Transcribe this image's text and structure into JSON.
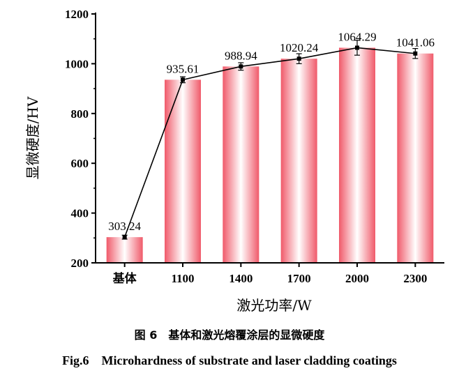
{
  "chart_data": {
    "type": "bar",
    "categories": [
      "基体",
      "1100",
      "1400",
      "1700",
      "2000",
      "2300"
    ],
    "values": [
      303.24,
      935.61,
      988.94,
      1020.24,
      1064.29,
      1041.06
    ],
    "value_labels": [
      "303.24",
      "935.61",
      "988.94",
      "1020.24",
      "1064.29",
      "1041.06"
    ],
    "error": [
      8,
      12,
      15,
      20,
      30,
      20
    ],
    "line_overlay": true,
    "xlabel": "激光功率/W",
    "ylabel": "显微硬度/HV",
    "ylim": [
      200,
      1200
    ],
    "yticks": [
      200,
      400,
      600,
      800,
      1000,
      1200
    ],
    "grid": false,
    "bar_colors": {
      "edge": "#f05a6a",
      "center": "#ffffff"
    },
    "line_color": "#000000"
  },
  "caption": {
    "cn": "图 6　基体和激光熔覆涂层的显微硬度",
    "en": "Fig.6　Microhardness of substrate and laser cladding coatings"
  }
}
